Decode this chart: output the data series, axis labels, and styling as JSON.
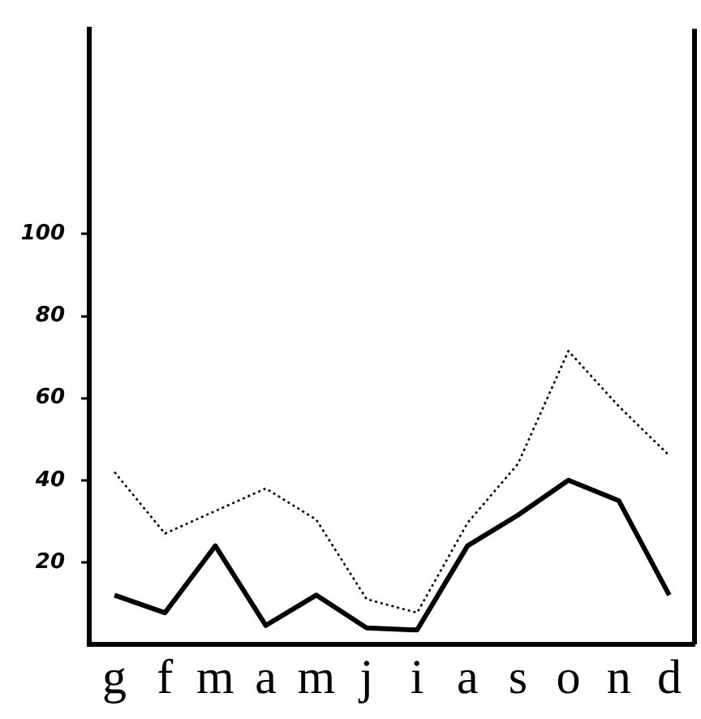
{
  "chart_data": {
    "type": "line",
    "categories": [
      "g",
      "f",
      "m",
      "a",
      "m",
      "j",
      "i",
      "a",
      "s",
      "o",
      "n",
      "d"
    ],
    "series": [
      {
        "color": "#000000",
        "line_style": "solid",
        "values": [
          12,
          7.7,
          24,
          4.6,
          12,
          4,
          3.5,
          24,
          31.5,
          40,
          35,
          12
        ]
      },
      {
        "color": "#000000",
        "line_style": "dotted",
        "values": [
          42,
          27,
          32.5,
          38,
          30.4,
          11,
          7.7,
          29.6,
          44,
          71.5,
          58,
          46
        ]
      }
    ],
    "ylim": [
      0,
      150
    ],
    "yticks": [
      20,
      40,
      60,
      80,
      100
    ],
    "grid": false,
    "legend": false,
    "marker": "none"
  }
}
